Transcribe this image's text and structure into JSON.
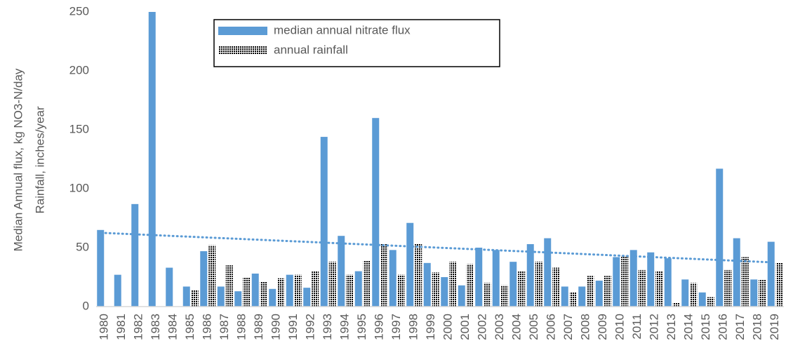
{
  "chart_data": {
    "type": "bar",
    "ylabel": [
      "Median Annual  flux, kg NO3-N/day",
      "Rainfall, inches/year"
    ],
    "categories": [
      "1980",
      "1981",
      "1982",
      "1983",
      "1984",
      "1985",
      "1986",
      "1987",
      "1988",
      "1989",
      "1990",
      "1991",
      "1992",
      "1993",
      "1994",
      "1995",
      "1996",
      "1997",
      "1998",
      "1999",
      "2000",
      "2001",
      "2002",
      "2003",
      "2004",
      "2005",
      "2006",
      "2007",
      "2008",
      "2009",
      "2010",
      "2011",
      "2012",
      "2013",
      "2014",
      "2015",
      "2016",
      "2017",
      "2018",
      "2019"
    ],
    "series": [
      {
        "name": "median annual nitrate flux",
        "color": "#5b9bd5",
        "trendline": true,
        "values": [
          65,
          27,
          87,
          250,
          33,
          17,
          47,
          17,
          13,
          28,
          15,
          27,
          16,
          144,
          60,
          30,
          160,
          48,
          71,
          37,
          25,
          18,
          50,
          48,
          38,
          53,
          58,
          17,
          17,
          22,
          42,
          48,
          46,
          41,
          23,
          12,
          117,
          58,
          23,
          55
        ]
      },
      {
        "name": "annual rainfall",
        "color": "#000000",
        "values": [
          null,
          null,
          null,
          null,
          null,
          14,
          52,
          35,
          25,
          21,
          24,
          27,
          30,
          38,
          27,
          39,
          53,
          27,
          53,
          29,
          38,
          36,
          20,
          18,
          30,
          38,
          33,
          12,
          26,
          26,
          43,
          31,
          30,
          3,
          20,
          8,
          31,
          42,
          23,
          37
        ]
      }
    ],
    "ylim": [
      0,
      250
    ],
    "yticks": [
      0,
      50,
      100,
      150,
      200,
      250
    ],
    "grid": false
  }
}
